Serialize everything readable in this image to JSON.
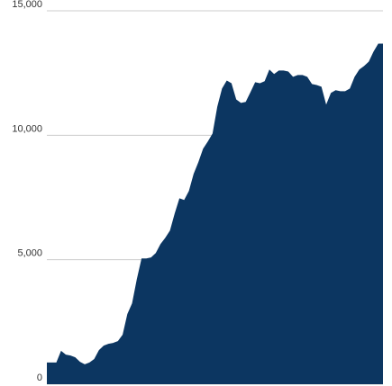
{
  "chart_data": {
    "type": "area",
    "color": "#0c3661",
    "grid": true,
    "values": [
      870,
      870,
      870,
      1340,
      1190,
      1150,
      1080,
      900,
      800,
      870,
      1010,
      1370,
      1550,
      1620,
      1660,
      1730,
      1990,
      2820,
      3250,
      4220,
      5050,
      5050,
      5090,
      5270,
      5630,
      5880,
      6170,
      6860,
      7470,
      7400,
      7760,
      8450,
      8920,
      9460,
      9750,
      10070,
      11150,
      11880,
      12200,
      12090,
      11440,
      11300,
      11340,
      11730,
      12130,
      12090,
      12170,
      12640,
      12460,
      12600,
      12600,
      12560,
      12350,
      12420,
      12420,
      12350,
      12060,
      12020,
      11950,
      11230,
      11700,
      11810,
      11770,
      11770,
      11880,
      12350,
      12640,
      12780,
      12960,
      13360,
      13680,
      13680
    ],
    "ylim": [
      0,
      15000
    ],
    "yticks": [
      0,
      {
        "value": 5000,
        "label": "5,000"
      },
      {
        "value": 10000,
        "label": "10,000"
      },
      {
        "value": 15000,
        "label": "15,000"
      }
    ]
  }
}
